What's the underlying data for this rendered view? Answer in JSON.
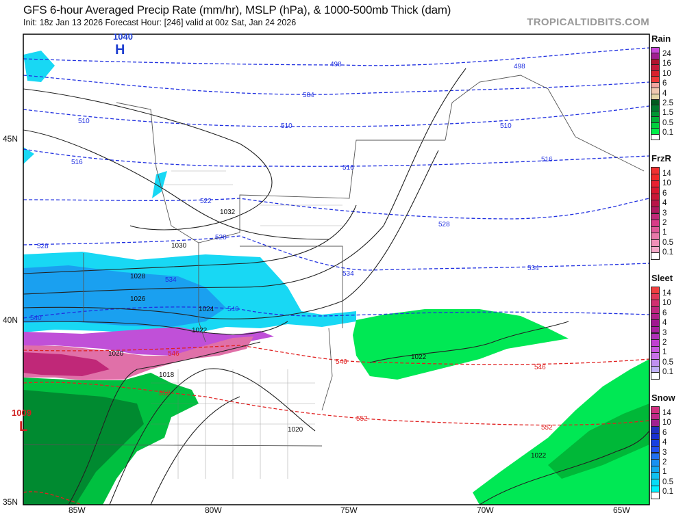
{
  "header": {
    "title": "GFS 6-hour Averaged Precip Rate (mm/hr), MSLP (hPa), & 1000-500mb Thick (dam)",
    "subtitle": "Init: 18z Jan 13 2026   Forecast Hour: [246]   valid at 00z Sat, Jan 24 2026",
    "brand": "TROPICALTIDBITS.COM"
  },
  "axes": {
    "lat_labels": [
      "45N",
      "40N",
      "35N"
    ],
    "lon_labels": [
      "85W",
      "80W",
      "75W",
      "70W",
      "65W"
    ]
  },
  "pressure_centers": [
    {
      "type": "H",
      "value": "1040",
      "color": "#1f3fd0"
    },
    {
      "type": "L",
      "value": "1009",
      "color": "#d02020"
    }
  ],
  "isobar_labels": [
    "1032",
    "1030",
    "1028",
    "1026",
    "1024",
    "1022",
    "1020",
    "1018",
    "1020",
    "1022",
    "1022"
  ],
  "thickness_labels_blue": [
    "498",
    "498",
    "504",
    "510",
    "510",
    "510",
    "516",
    "516",
    "516",
    "522",
    "528",
    "528",
    "528",
    "534",
    "534",
    "534",
    "540",
    "540"
  ],
  "thickness_labels_red": [
    "546",
    "546",
    "546",
    "552",
    "552",
    "552"
  ],
  "legend": {
    "rain": {
      "title": "Rain",
      "ticks": [
        "24",
        "16",
        "10",
        "6",
        "4",
        "2.5",
        "1.5",
        "0.5",
        "0.1"
      ],
      "colors": [
        "#c848d8",
        "#a01e90",
        "#b0142e",
        "#c41a3a",
        "#d8202c",
        "#f03838",
        "#f4a6a0",
        "#f0c8b0",
        "#e6d6a8",
        "#005a1e",
        "#00782c",
        "#009632",
        "#00b236",
        "#00d03c",
        "#00ee48",
        "#ffffff"
      ]
    },
    "frzr": {
      "title": "FrzR",
      "ticks": [
        "14",
        "10",
        "6",
        "4",
        "3",
        "2",
        "1",
        "0.5",
        "0.1"
      ],
      "colors": [
        "#f03030",
        "#f02828",
        "#e82030",
        "#d81830",
        "#c81838",
        "#b81448",
        "#b01860",
        "#c02878",
        "#d83c88",
        "#e05898",
        "#e878a8",
        "#f090b8",
        "#f4a8c8",
        "#ffffff"
      ]
    },
    "sleet": {
      "title": "Sleet",
      "ticks": [
        "14",
        "10",
        "6",
        "4",
        "3",
        "2",
        "1",
        "0.5",
        "0.1"
      ],
      "colors": [
        "#f04040",
        "#e03858",
        "#d03070",
        "#c02880",
        "#b02088",
        "#a01890",
        "#a820a0",
        "#b030b8",
        "#c040d0",
        "#c858e0",
        "#c870e8",
        "#c090f0",
        "#c0b0f8",
        "#ffffff"
      ]
    },
    "snow": {
      "title": "Snow",
      "ticks": [
        "14",
        "10",
        "6",
        "4",
        "3",
        "2",
        "1",
        "0.5",
        "0.1"
      ],
      "colors": [
        "#d03080",
        "#c02888",
        "#a02090",
        "#2030c0",
        "#1830d0",
        "#1840e0",
        "#2050f0",
        "#2070f0",
        "#1890f0",
        "#10a8f0",
        "#10c0f0",
        "#08dcf8",
        "#00f0ff",
        "#ffffff"
      ]
    }
  },
  "colors": {
    "thickness_cold": "#2030e0",
    "thickness_warm": "#e02020",
    "isobar": "#222222",
    "border": "#555555"
  }
}
